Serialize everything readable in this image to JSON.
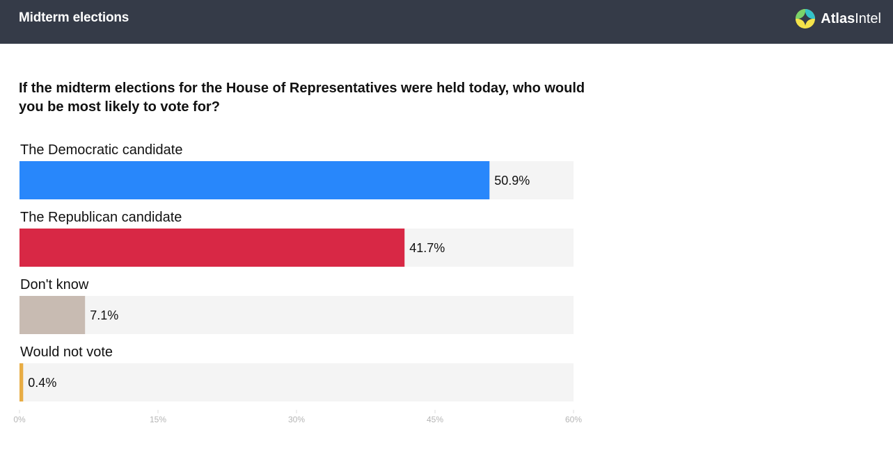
{
  "header": {
    "title": "Midterm elections",
    "brand_name_bold": "Atlas",
    "brand_name_rest": "Intel",
    "logo_icon": "atlasintel-logo-icon"
  },
  "question": "If the midterm elections for the House of Representatives were held today, who would you be most likely to vote for?",
  "chart_data": {
    "type": "bar",
    "orientation": "horizontal",
    "title": "",
    "xlabel": "",
    "ylabel": "",
    "categories": [
      "The Democratic candidate",
      "The Republican candidate",
      "Don't know",
      "Would not vote"
    ],
    "values": [
      50.9,
      41.7,
      7.1,
      0.4
    ],
    "value_labels": [
      "50.9%",
      "41.7%",
      "7.1%",
      "0.4%"
    ],
    "colors": [
      "#2887fb",
      "#d82845",
      "#c8bbb2",
      "#e8ac44"
    ],
    "track_color": "#f4f4f4",
    "xlim": [
      0,
      60
    ],
    "ticks": [
      0,
      15,
      30,
      45,
      60
    ],
    "tick_labels": [
      "0%",
      "15%",
      "30%",
      "45%",
      "60%"
    ],
    "grid": false
  }
}
